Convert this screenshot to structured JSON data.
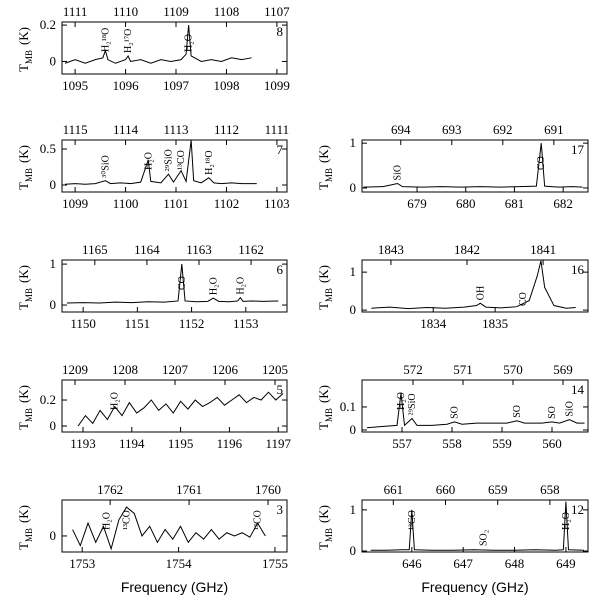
{
  "chart_data": [
    {
      "type": "line",
      "label": "8",
      "ylabel": {
        "symbol": "T",
        "subscript": "MB",
        "unit": "(K)"
      },
      "xlim": [
        1094.74,
        1099.2
      ],
      "xticks": [
        1095,
        1096,
        1097,
        1098,
        1099
      ],
      "x2lim": [
        1111.26,
        1106.8
      ],
      "x2ticks": [
        1111,
        1110,
        1109,
        1108,
        1107
      ],
      "ylim": [
        -0.069,
        0.217
      ],
      "yticks": [
        0,
        0.2
      ],
      "color": "#000000",
      "x": [
        1094.8,
        1095.0,
        1095.2,
        1095.4,
        1095.55,
        1095.6,
        1095.65,
        1095.8,
        1096.0,
        1096.05,
        1096.1,
        1096.3,
        1096.5,
        1096.7,
        1096.9,
        1097.1,
        1097.2,
        1097.25,
        1097.3,
        1097.5,
        1097.7,
        1097.9,
        1098.1,
        1098.3,
        1098.5
      ],
      "values": [
        -0.01,
        0.01,
        -0.01,
        0.01,
        0.02,
        0.06,
        0.01,
        -0.01,
        0.01,
        0.03,
        0,
        0.01,
        -0.01,
        0.01,
        0,
        0.01,
        0.04,
        0.2,
        0.03,
        0,
        0.01,
        0,
        0.02,
        0.01,
        0.02
      ],
      "annotations": [
        {
          "text": "H₂¹⁸O",
          "x": 1095.6
        },
        {
          "text": "H₂¹⁷O",
          "x": 1096.05
        },
        {
          "text": "H₂O",
          "x": 1097.25
        }
      ]
    },
    {
      "type": "line",
      "label": "7",
      "ylabel": {
        "symbol": "T",
        "subscript": "MB",
        "unit": "(K)"
      },
      "xlim": [
        1098.74,
        1103.2
      ],
      "xticks": [
        1099,
        1100,
        1101,
        1102,
        1103
      ],
      "x2lim": [
        1115.26,
        1110.8
      ],
      "x2ticks": [
        1115,
        1114,
        1113,
        1112,
        1111
      ],
      "ylim": [
        -0.097,
        0.625
      ],
      "yticks": [
        0,
        0.5
      ],
      "color": "#000000",
      "x": [
        1098.8,
        1099.0,
        1099.2,
        1099.4,
        1099.6,
        1099.7,
        1099.9,
        1100.1,
        1100.3,
        1100.45,
        1100.5,
        1100.7,
        1100.85,
        1100.95,
        1101.1,
        1101.2,
        1101.3,
        1101.35,
        1101.5,
        1101.65,
        1101.75,
        1101.9,
        1102.1,
        1102.3,
        1102.6
      ],
      "values": [
        0.01,
        0.02,
        0.01,
        0.02,
        0.06,
        0.02,
        0.03,
        0.02,
        0.04,
        0.35,
        0.05,
        0.03,
        0.15,
        0.04,
        0.2,
        0.05,
        0.62,
        0.06,
        0.03,
        0.1,
        0.03,
        0.02,
        0.03,
        0.02,
        0.02
      ],
      "annotations": [
        {
          "text": "³⁰SiO",
          "x": 1099.6
        },
        {
          "text": "H₂O",
          "x": 1100.45
        },
        {
          "text": "²⁹SiO",
          "x": 1100.85
        },
        {
          "text": "¹³CO",
          "x": 1101.1
        },
        {
          "text": "H₂¹⁸O",
          "x": 1101.65
        }
      ]
    },
    {
      "type": "line",
      "label": "6",
      "ylabel": {
        "symbol": "T",
        "subscript": "MB",
        "unit": "(K)"
      },
      "xlim": [
        1149.61,
        1153.76
      ],
      "xticks": [
        1150,
        1151,
        1152,
        1153
      ],
      "x2lim": [
        1165.63,
        1161.31
      ],
      "x2ticks": [
        1165,
        1164,
        1163,
        1162
      ],
      "ylim": [
        -0.17,
        1.1
      ],
      "yticks": [
        0,
        1
      ],
      "color": "#000000",
      "x": [
        1149.7,
        1150.0,
        1150.3,
        1150.6,
        1150.9,
        1151.2,
        1151.5,
        1151.75,
        1151.82,
        1151.88,
        1152.1,
        1152.3,
        1152.4,
        1152.5,
        1152.7,
        1152.85,
        1152.9,
        1152.95,
        1153.1,
        1153.3,
        1153.6
      ],
      "values": [
        0.05,
        0.06,
        0.05,
        0.07,
        0.06,
        0.08,
        0.07,
        0.1,
        1.0,
        0.1,
        0.08,
        0.09,
        0.17,
        0.09,
        0.08,
        0.1,
        0.18,
        0.09,
        0.1,
        0.09,
        0.1
      ],
      "annotations": [
        {
          "text": "CO",
          "x": 1151.82
        },
        {
          "text": "H₂O",
          "x": 1152.4
        },
        {
          "text": "H₂O",
          "x": 1152.9
        }
      ]
    },
    {
      "type": "line",
      "label": "5",
      "ylabel": {
        "symbol": "T",
        "subscript": "MB",
        "unit": "(K)"
      },
      "xlim": [
        1192.57,
        1197.18
      ],
      "xticks": [
        1193,
        1194,
        1195,
        1196,
        1197
      ],
      "x2lim": [
        1209.26,
        1204.76
      ],
      "x2ticks": [
        1209,
        1208,
        1207,
        1206,
        1205
      ],
      "ylim": [
        -0.046,
        0.354
      ],
      "yticks": [
        0,
        0.2
      ],
      "color": "#000000",
      "x": [
        1192.9,
        1193.05,
        1193.2,
        1193.35,
        1193.5,
        1193.65,
        1193.8,
        1193.95,
        1194.1,
        1194.25,
        1194.4,
        1194.55,
        1194.7,
        1194.85,
        1195.0,
        1195.15,
        1195.3,
        1195.45,
        1195.6,
        1195.75,
        1195.9,
        1196.05,
        1196.2,
        1196.35,
        1196.5,
        1196.65,
        1196.8,
        1196.95,
        1197.1
      ],
      "values": [
        0.0,
        0.08,
        0.02,
        0.12,
        0.05,
        0.15,
        0.08,
        0.18,
        0.1,
        0.14,
        0.2,
        0.12,
        0.17,
        0.1,
        0.19,
        0.13,
        0.2,
        0.15,
        0.18,
        0.22,
        0.16,
        0.2,
        0.24,
        0.18,
        0.22,
        0.2,
        0.26,
        0.2,
        0.25
      ],
      "annotations": [
        {
          "text": "H₂O",
          "x": 1193.65
        }
      ]
    },
    {
      "type": "line",
      "label": "3",
      "ylabel": {
        "symbol": "T",
        "subscript": "MB",
        "unit": "(K)"
      },
      "xlim": [
        1752.79,
        1755.125
      ],
      "xticks": [
        1753,
        1754,
        1755
      ],
      "x2lim": [
        1762.61,
        1759.76
      ],
      "x2ticks": [
        1762,
        1761,
        1760
      ],
      "ylim": [
        -0.25,
        0.56
      ],
      "yticks": [
        0
      ],
      "color": "#000000",
      "xlabel": "Frequency (GHz)",
      "x": [
        1752.9,
        1752.98,
        1753.06,
        1753.14,
        1753.22,
        1753.3,
        1753.38,
        1753.46,
        1753.54,
        1753.62,
        1753.7,
        1753.78,
        1753.86,
        1753.94,
        1754.02,
        1754.1,
        1754.18,
        1754.26,
        1754.34,
        1754.42,
        1754.5,
        1754.58,
        1754.66,
        1754.74,
        1754.82,
        1754.9
      ],
      "values": [
        0.1,
        -0.15,
        0.2,
        -0.1,
        0.15,
        -0.2,
        0.25,
        0.45,
        0.35,
        0.0,
        0.15,
        -0.1,
        0.1,
        -0.05,
        0.15,
        -0.1,
        0.05,
        -0.05,
        0.1,
        -0.05,
        0.05,
        0.0,
        0.05,
        -0.02,
        0.2,
        0.0
      ],
      "annotations": [
        {
          "text": "H₂O",
          "x": 1753.25
        },
        {
          "text": "¹³CO",
          "x": 1753.46
        },
        {
          "text": "¹³CO",
          "x": 1754.82
        }
      ]
    },
    {
      "type": "line",
      "label": "17",
      "ylabel": {
        "symbol": "T",
        "subscript": "MB",
        "unit": "(K)"
      },
      "xlim": [
        677.87,
        682.51
      ],
      "xticks": [
        679,
        680,
        681,
        682
      ],
      "x2lim": [
        694.76,
        690.33
      ],
      "x2ticks": [
        694,
        693,
        692,
        691
      ],
      "ylim": [
        -0.09,
        1.07
      ],
      "yticks": [
        0,
        1
      ],
      "color": "#000000",
      "x": [
        677.9,
        678.3,
        678.6,
        678.7,
        679.1,
        679.5,
        679.9,
        680.3,
        680.7,
        681.1,
        681.45,
        681.55,
        681.62,
        681.9,
        682.2,
        682.4
      ],
      "values": [
        0.02,
        0.03,
        0.1,
        0.03,
        0.02,
        0.03,
        0.02,
        0.03,
        0.02,
        0.03,
        0.04,
        1.0,
        0.04,
        0.02,
        0.03,
        0.02
      ],
      "annotations": [
        {
          "text": "SiO",
          "x": 678.6
        },
        {
          "text": "CO",
          "x": 681.55
        }
      ]
    },
    {
      "type": "line",
      "label": "16",
      "ylabel": {
        "symbol": "T",
        "subscript": "MB",
        "unit": "(K)"
      },
      "xlim": [
        1832.85,
        1836.5
      ],
      "xticks": [
        1834,
        1835
      ],
      "x2lim": [
        1843.38,
        1840.41
      ],
      "x2ticks": [
        1843,
        1842,
        1841
      ],
      "ylim": [
        -0.05,
        1.32
      ],
      "yticks": [
        0,
        1
      ],
      "color": "#000000",
      "x": [
        1833.0,
        1833.3,
        1833.6,
        1833.9,
        1834.2,
        1834.5,
        1834.7,
        1834.76,
        1834.85,
        1835.1,
        1835.35,
        1835.55,
        1835.68,
        1835.74,
        1835.8,
        1835.95,
        1836.15,
        1836.3
      ],
      "values": [
        0.05,
        0.08,
        0.04,
        0.07,
        0.05,
        0.08,
        0.12,
        0.18,
        0.08,
        0.06,
        0.09,
        0.25,
        0.9,
        1.3,
        0.6,
        0.12,
        0.05,
        0.07
      ],
      "annotations": [
        {
          "text": "OH",
          "x": 1834.76
        },
        {
          "text": "CO",
          "x": 1835.45
        }
      ]
    },
    {
      "type": "line",
      "label": "14",
      "ylabel": {
        "symbol": "T",
        "subscript": "MB",
        "unit": "(K)"
      },
      "xlim": [
        556.2,
        560.72
      ],
      "xticks": [
        557,
        558,
        559,
        560
      ],
      "x2lim": [
        573.02,
        568.5
      ],
      "x2ticks": [
        572,
        571,
        570,
        569
      ],
      "ylim": [
        -0.0087,
        0.217
      ],
      "yticks": [
        0,
        0.1
      ],
      "color": "#000000",
      "x": [
        556.3,
        556.6,
        556.9,
        556.98,
        557.05,
        557.2,
        557.3,
        557.6,
        557.9,
        558.05,
        558.2,
        558.5,
        558.8,
        559.1,
        559.3,
        559.45,
        559.8,
        560.0,
        560.15,
        560.35,
        560.5,
        560.65
      ],
      "values": [
        0.01,
        0.015,
        0.02,
        0.16,
        0.02,
        0.05,
        0.02,
        0.02,
        0.025,
        0.035,
        0.025,
        0.03,
        0.03,
        0.03,
        0.04,
        0.03,
        0.03,
        0.035,
        0.03,
        0.045,
        0.03,
        0.03
      ],
      "annotations": [
        {
          "text": "H₂O",
          "x": 556.98
        },
        {
          "text": "²⁹SiO",
          "x": 557.2
        },
        {
          "text": "SO",
          "x": 558.05
        },
        {
          "text": "SO",
          "x": 559.3
        },
        {
          "text": "SO",
          "x": 560.0
        },
        {
          "text": "SiO",
          "x": 560.35
        }
      ]
    },
    {
      "type": "line",
      "label": "12",
      "ylabel": {
        "symbol": "T",
        "subscript": "MB",
        "unit": "(K)"
      },
      "xlim": [
        645.03,
        649.43
      ],
      "xticks": [
        646,
        647,
        648,
        649
      ],
      "x2lim": [
        661.6,
        657.27
      ],
      "x2ticks": [
        661,
        660,
        659,
        658
      ],
      "ylim": [
        -0.024,
        1.24
      ],
      "yticks": [
        0,
        1
      ],
      "color": "#000000",
      "xlabel": "Frequency (GHz)",
      "x": [
        645.2,
        645.5,
        645.8,
        645.95,
        646.0,
        646.05,
        646.4,
        646.8,
        647.2,
        647.6,
        648.0,
        648.4,
        648.8,
        648.95,
        649.0,
        649.05,
        649.35
      ],
      "values": [
        0.02,
        0.02,
        0.03,
        0.03,
        1.0,
        0.03,
        0.02,
        0.02,
        0.03,
        0.02,
        0.02,
        0.03,
        0.02,
        0.03,
        1.2,
        0.03,
        0.02
      ],
      "annotations": [
        {
          "text": "¹³CO",
          "x": 646.0
        },
        {
          "text": "SO₂",
          "x": 647.4
        },
        {
          "text": "H₂O",
          "x": 649.0
        }
      ]
    }
  ]
}
